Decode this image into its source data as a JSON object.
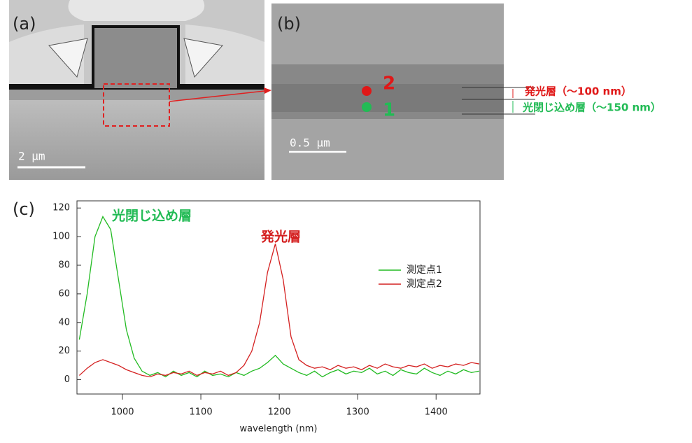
{
  "figure": {
    "panel_a": {
      "label": "(a)",
      "scale_bar": "2 µm"
    },
    "panel_b": {
      "label": "(b)",
      "scale_bar": "0.5 µm",
      "point_2": "2",
      "point_1": "1",
      "layer_emit": "発光層（～100 nm）",
      "layer_confine": "光閉じ込め層（～150 nm）"
    },
    "panel_c": {
      "label": "(c)"
    }
  },
  "chart_data": {
    "type": "line",
    "xlabel": "wavelength (nm)",
    "annotations": [
      "光閉じ込め層",
      "発光層"
    ],
    "x": [
      945,
      955,
      965,
      975,
      985,
      995,
      1005,
      1015,
      1025,
      1035,
      1045,
      1055,
      1065,
      1075,
      1085,
      1095,
      1105,
      1115,
      1125,
      1135,
      1145,
      1155,
      1165,
      1175,
      1185,
      1195,
      1205,
      1215,
      1225,
      1235,
      1245,
      1255,
      1265,
      1275,
      1285,
      1295,
      1305,
      1315,
      1325,
      1335,
      1345,
      1355,
      1365,
      1375,
      1385,
      1395,
      1405,
      1415,
      1425,
      1435,
      1445,
      1455
    ],
    "series": [
      {
        "name": "測定点1",
        "color": "#22bb22",
        "values": [
          28,
          60,
          100,
          114,
          105,
          70,
          35,
          15,
          6,
          3,
          5,
          2,
          6,
          3,
          5,
          2,
          6,
          3,
          4,
          2,
          5,
          3,
          6,
          8,
          12,
          17,
          11,
          8,
          5,
          3,
          6,
          2,
          5,
          7,
          4,
          6,
          5,
          8,
          4,
          6,
          3,
          7,
          5,
          4,
          8,
          5,
          3,
          6,
          4,
          7,
          5,
          6
        ]
      },
      {
        "name": "測定点2",
        "color": "#d42020",
        "values": [
          3,
          8,
          12,
          14,
          12,
          10,
          7,
          5,
          3,
          2,
          4,
          3,
          5,
          4,
          6,
          3,
          5,
          4,
          6,
          3,
          5,
          10,
          20,
          40,
          75,
          95,
          70,
          30,
          14,
          10,
          8,
          9,
          7,
          10,
          8,
          9,
          7,
          10,
          8,
          11,
          9,
          8,
          10,
          9,
          11,
          8,
          10,
          9,
          11,
          10,
          12,
          11
        ]
      }
    ],
    "xlim": [
      942,
      1456
    ],
    "xticks": [
      1000,
      1100,
      1200,
      1300,
      1400
    ],
    "ylim": [
      -10,
      125
    ],
    "yticks": [
      0,
      20,
      40,
      60,
      80,
      100,
      120
    ],
    "legend": "right"
  }
}
